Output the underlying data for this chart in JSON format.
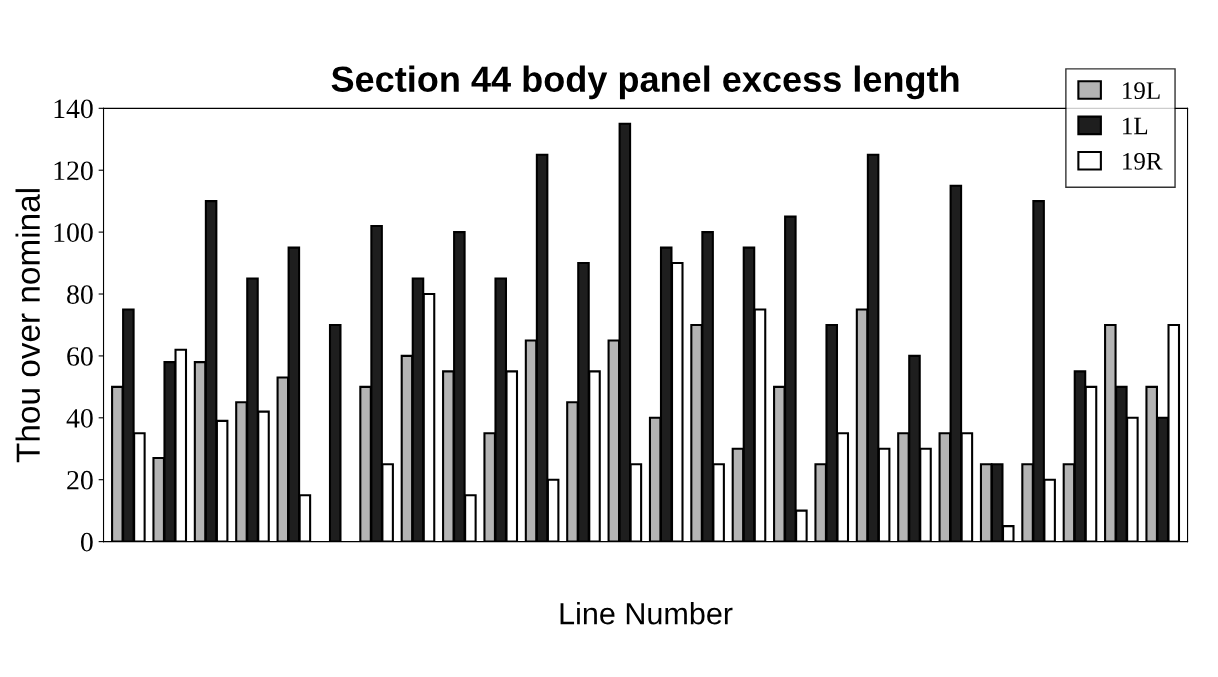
{
  "chart_data": {
    "type": "bar",
    "title": "Section 44 body panel excess length",
    "xlabel": "Line Number",
    "ylabel": "Thou over nominal",
    "categories": [
      null,
      null,
      null,
      null,
      null,
      null,
      null,
      null,
      null,
      null,
      null,
      null,
      null,
      null,
      null,
      null,
      null,
      null,
      null,
      null,
      null,
      null,
      null,
      null,
      null,
      null
    ],
    "series": [
      {
        "name": "19L",
        "color": "#b4b4b4",
        "values": [
          50,
          27,
          58,
          45,
          53,
          null,
          50,
          60,
          55,
          35,
          65,
          45,
          65,
          40,
          70,
          30,
          50,
          25,
          75,
          35,
          35,
          25,
          25,
          25,
          70,
          50
        ]
      },
      {
        "name": "1L",
        "color": "#1e1e1e",
        "values": [
          75,
          58,
          110,
          85,
          95,
          70,
          102,
          85,
          100,
          85,
          125,
          90,
          135,
          95,
          100,
          95,
          105,
          70,
          125,
          60,
          115,
          25,
          110,
          55,
          50,
          40
        ]
      },
      {
        "name": "19R",
        "color": "#ffffff",
        "values": [
          35,
          62,
          39,
          42,
          15,
          null,
          25,
          80,
          15,
          55,
          20,
          55,
          25,
          90,
          25,
          75,
          10,
          35,
          30,
          30,
          35,
          5,
          20,
          50,
          40,
          70
        ]
      }
    ],
    "ylim": [
      0,
      140
    ],
    "yticks": [
      0,
      20,
      40,
      60,
      80,
      100,
      120,
      140
    ],
    "grid": false,
    "legend": "top right"
  }
}
